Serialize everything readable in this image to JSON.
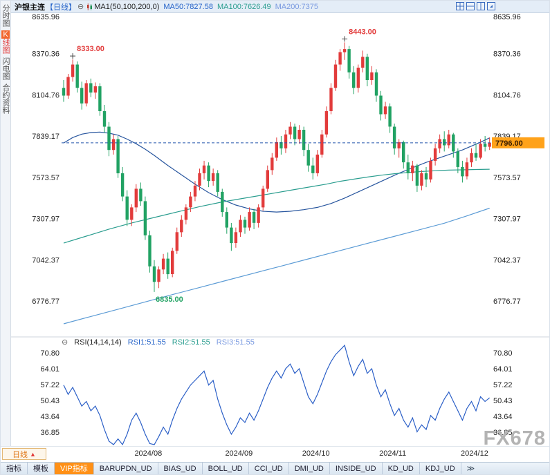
{
  "header": {
    "title": "沪银主连",
    "period_tag": "【日线】",
    "collapse_icon": "⊖",
    "ma_label": "MA1(50,100,200,0)",
    "ma50": "MA50:7827.58",
    "ma100": "MA100:7626.49",
    "ma200": "MA200:7375"
  },
  "sidebar": {
    "items": [
      {
        "label": "分时图",
        "selected": false
      },
      {
        "label": "K线图",
        "selected": true
      },
      {
        "label": "闪电图",
        "selected": false
      },
      {
        "label": "合约资料",
        "selected": false
      }
    ]
  },
  "rsi_header": {
    "collapse_icon": "⊖",
    "name": "RSI(14,14,14)",
    "rsi1": "RSI1:51.55",
    "rsi2": "RSI2:51.55",
    "rsi3": "RSI3:51.55"
  },
  "xaxis": {
    "period_button": "日线",
    "period_arrow": "▲",
    "watermark": "FX678"
  },
  "toolbar": {
    "items": [
      {
        "label": "指标",
        "highlight": false
      },
      {
        "label": "模板",
        "highlight": false
      },
      {
        "label": "VIP指标",
        "highlight": true
      },
      {
        "label": "BARUPDN_UD",
        "highlight": false
      },
      {
        "label": "BIAS_UD",
        "highlight": false
      },
      {
        "label": "BOLL_UD",
        "highlight": false
      },
      {
        "label": "CCI_UD",
        "highlight": false
      },
      {
        "label": "DMI_UD",
        "highlight": false
      },
      {
        "label": "INSIDE_UD",
        "highlight": false
      },
      {
        "label": "KD_UD",
        "highlight": false
      },
      {
        "label": "KDJ_UD",
        "highlight": false
      }
    ],
    "more": "≫"
  },
  "colors": {
    "up": "#e23b3b",
    "down": "#21a263",
    "ma50": "#27559e",
    "ma100": "#2a9d8f",
    "ma200": "#5b9bd5",
    "rsi": "#2b5fc7",
    "dashed_line": "#2255aa",
    "last_price_bg": "#ffa21a",
    "last_price_text": "#3a1d00",
    "axis_text": "#222"
  },
  "chart_data": {
    "type": "candlestick",
    "symbol": "沪银主连",
    "period": "日线",
    "price_axis": {
      "max": 8635.96,
      "min": 6776.77,
      "ticks": [
        "8635.96",
        "8370.36",
        "8104.76",
        "7839.17",
        "7573.57",
        "7307.97",
        "7042.37",
        "6776.77"
      ]
    },
    "x_ticks": [
      {
        "label": "2024/08",
        "index": 19
      },
      {
        "label": "2024/09",
        "index": 39
      },
      {
        "label": "2024/10",
        "index": 56
      },
      {
        "label": "2024/11",
        "index": 73
      },
      {
        "label": "2024/12",
        "index": 91
      }
    ],
    "candles": [
      [
        8150,
        8200,
        8060,
        8100
      ],
      [
        8100,
        8240,
        8080,
        8220
      ],
      [
        8220,
        8333,
        8190,
        8300
      ],
      [
        8300,
        8320,
        8120,
        8150
      ],
      [
        8150,
        8190,
        8010,
        8050
      ],
      [
        8050,
        8200,
        8030,
        8180
      ],
      [
        8180,
        8210,
        8090,
        8120
      ],
      [
        8120,
        8185,
        8080,
        8160
      ],
      [
        8160,
        8180,
        7970,
        8000
      ],
      [
        8000,
        8040,
        7860,
        7900
      ],
      [
        7900,
        7930,
        7710,
        7750
      ],
      [
        7750,
        7850,
        7720,
        7820
      ],
      [
        7820,
        7840,
        7570,
        7600
      ],
      [
        7600,
        7640,
        7420,
        7450
      ],
      [
        7450,
        7490,
        7260,
        7300
      ],
      [
        7300,
        7400,
        7260,
        7380
      ],
      [
        7380,
        7530,
        7350,
        7500
      ],
      [
        7500,
        7540,
        7390,
        7420
      ],
      [
        7420,
        7450,
        7170,
        7200
      ],
      [
        7200,
        7230,
        6960,
        7000
      ],
      [
        7000,
        7040,
        6835,
        6900
      ],
      [
        6900,
        7000,
        6860,
        6980
      ],
      [
        6980,
        7080,
        6950,
        7050
      ],
      [
        7050,
        7090,
        6920,
        6950
      ],
      [
        6950,
        7120,
        6930,
        7100
      ],
      [
        7100,
        7250,
        7080,
        7220
      ],
      [
        7220,
        7330,
        7190,
        7300
      ],
      [
        7300,
        7400,
        7270,
        7380
      ],
      [
        7380,
        7480,
        7350,
        7450
      ],
      [
        7450,
        7550,
        7420,
        7520
      ],
      [
        7520,
        7630,
        7490,
        7600
      ],
      [
        7600,
        7680,
        7560,
        7650
      ],
      [
        7650,
        7670,
        7510,
        7550
      ],
      [
        7550,
        7630,
        7520,
        7600
      ],
      [
        7600,
        7620,
        7450,
        7480
      ],
      [
        7480,
        7500,
        7320,
        7350
      ],
      [
        7350,
        7380,
        7210,
        7250
      ],
      [
        7250,
        7280,
        7100,
        7150
      ],
      [
        7150,
        7250,
        7120,
        7220
      ],
      [
        7220,
        7330,
        7190,
        7300
      ],
      [
        7300,
        7320,
        7210,
        7250
      ],
      [
        7250,
        7380,
        7230,
        7350
      ],
      [
        7350,
        7370,
        7240,
        7280
      ],
      [
        7280,
        7400,
        7250,
        7380
      ],
      [
        7380,
        7520,
        7360,
        7500
      ],
      [
        7500,
        7650,
        7480,
        7620
      ],
      [
        7620,
        7730,
        7590,
        7700
      ],
      [
        7700,
        7830,
        7680,
        7800
      ],
      [
        7800,
        7840,
        7720,
        7760
      ],
      [
        7760,
        7880,
        7730,
        7850
      ],
      [
        7850,
        7930,
        7820,
        7900
      ],
      [
        7900,
        7920,
        7780,
        7820
      ],
      [
        7820,
        7910,
        7790,
        7880
      ],
      [
        7880,
        7900,
        7710,
        7750
      ],
      [
        7750,
        7790,
        7610,
        7650
      ],
      [
        7650,
        7700,
        7560,
        7600
      ],
      [
        7600,
        7750,
        7580,
        7720
      ],
      [
        7720,
        7880,
        7700,
        7850
      ],
      [
        7850,
        8030,
        7830,
        8000
      ],
      [
        8000,
        8180,
        7980,
        8150
      ],
      [
        8150,
        8330,
        8130,
        8300
      ],
      [
        8300,
        8400,
        8260,
        8380
      ],
      [
        8380,
        8443,
        8330,
        8400
      ],
      [
        8400,
        8420,
        8210,
        8250
      ],
      [
        8250,
        8290,
        8110,
        8150
      ],
      [
        8150,
        8300,
        8120,
        8280
      ],
      [
        8280,
        8390,
        8250,
        8350
      ],
      [
        8350,
        8370,
        8160,
        8200
      ],
      [
        8200,
        8290,
        8170,
        8250
      ],
      [
        8250,
        8270,
        8060,
        8100
      ],
      [
        8100,
        8130,
        7940,
        7980
      ],
      [
        7980,
        8060,
        7950,
        8030
      ],
      [
        8030,
        8050,
        7860,
        7900
      ],
      [
        7900,
        7920,
        7720,
        7760
      ],
      [
        7760,
        7820,
        7700,
        7800
      ],
      [
        7800,
        7810,
        7630,
        7670
      ],
      [
        7670,
        7720,
        7560,
        7600
      ],
      [
        7600,
        7680,
        7550,
        7650
      ],
      [
        7650,
        7660,
        7480,
        7520
      ],
      [
        7520,
        7620,
        7490,
        7600
      ],
      [
        7600,
        7640,
        7510,
        7560
      ],
      [
        7560,
        7700,
        7540,
        7680
      ],
      [
        7680,
        7790,
        7650,
        7760
      ],
      [
        7760,
        7850,
        7730,
        7820
      ],
      [
        7820,
        7870,
        7740,
        7780
      ],
      [
        7780,
        7880,
        7760,
        7850
      ],
      [
        7850,
        7860,
        7700,
        7740
      ],
      [
        7740,
        7760,
        7600,
        7640
      ],
      [
        7640,
        7680,
        7540,
        7580
      ],
      [
        7580,
        7700,
        7560,
        7670
      ],
      [
        7670,
        7760,
        7640,
        7730
      ],
      [
        7730,
        7790,
        7680,
        7700
      ],
      [
        7700,
        7820,
        7690,
        7790
      ],
      [
        7790,
        7840,
        7740,
        7770
      ],
      [
        7770,
        7830,
        7750,
        7796
      ]
    ],
    "ma_lines": [
      {
        "name": "MA50",
        "value": 7827.58,
        "color": "#27559e",
        "points": [
          [
            0,
            7795
          ],
          [
            2,
            7830
          ],
          [
            4,
            7852
          ],
          [
            6,
            7862
          ],
          [
            8,
            7865
          ],
          [
            10,
            7858
          ],
          [
            12,
            7845
          ],
          [
            14,
            7820
          ],
          [
            16,
            7790
          ],
          [
            18,
            7755
          ],
          [
            20,
            7715
          ],
          [
            23,
            7650
          ],
          [
            26,
            7590
          ],
          [
            29,
            7530
          ],
          [
            32,
            7475
          ],
          [
            35,
            7430
          ],
          [
            38,
            7395
          ],
          [
            41,
            7370
          ],
          [
            44,
            7355
          ],
          [
            47,
            7350
          ],
          [
            50,
            7355
          ],
          [
            53,
            7365
          ],
          [
            56,
            7380
          ],
          [
            59,
            7405
          ],
          [
            62,
            7440
          ],
          [
            65,
            7480
          ],
          [
            68,
            7520
          ],
          [
            71,
            7560
          ],
          [
            74,
            7600
          ],
          [
            77,
            7635
          ],
          [
            80,
            7670
          ],
          [
            83,
            7700
          ],
          [
            86,
            7730
          ],
          [
            88,
            7750
          ],
          [
            90,
            7775
          ],
          [
            92,
            7800
          ],
          [
            94,
            7828
          ]
        ]
      },
      {
        "name": "MA100",
        "value": 7626.49,
        "color": "#2a9d8f",
        "points": [
          [
            0,
            7150
          ],
          [
            5,
            7195
          ],
          [
            10,
            7240
          ],
          [
            15,
            7280
          ],
          [
            20,
            7315
          ],
          [
            25,
            7350
          ],
          [
            30,
            7385
          ],
          [
            35,
            7415
          ],
          [
            40,
            7440
          ],
          [
            45,
            7465
          ],
          [
            50,
            7490
          ],
          [
            55,
            7515
          ],
          [
            58,
            7530
          ],
          [
            61,
            7548
          ],
          [
            64,
            7562
          ],
          [
            67,
            7575
          ],
          [
            70,
            7587
          ],
          [
            73,
            7597
          ],
          [
            76,
            7605
          ],
          [
            79,
            7611
          ],
          [
            82,
            7616
          ],
          [
            85,
            7620
          ],
          [
            88,
            7622
          ],
          [
            91,
            7624
          ],
          [
            94,
            7626
          ]
        ]
      },
      {
        "name": "MA200",
        "value": 7375,
        "color": "#5b9bd5",
        "points": [
          [
            0,
            6630
          ],
          [
            6,
            6677
          ],
          [
            12,
            6724
          ],
          [
            18,
            6771
          ],
          [
            24,
            6818
          ],
          [
            30,
            6864
          ],
          [
            36,
            6910
          ],
          [
            42,
            6956
          ],
          [
            48,
            7002
          ],
          [
            54,
            7048
          ],
          [
            60,
            7094
          ],
          [
            66,
            7140
          ],
          [
            72,
            7186
          ],
          [
            78,
            7232
          ],
          [
            84,
            7278
          ],
          [
            89,
            7325
          ],
          [
            94,
            7375
          ]
        ]
      }
    ],
    "last_price": {
      "label": "7796.00",
      "value": 7796
    },
    "annotations": [
      {
        "label": "8333.00",
        "index": 2,
        "price": 8333,
        "color": "#e23b3b",
        "position": "above"
      },
      {
        "label": "8443.00",
        "index": 62,
        "price": 8443,
        "color": "#e23b3b",
        "position": "above"
      },
      {
        "label": "6835.00",
        "index": 20,
        "price": 6835,
        "color": "#21a263",
        "position": "below"
      }
    ],
    "rsi": {
      "name": "RSI(14,14,14)",
      "last": 51.55,
      "axis_ticks": [
        "70.80",
        "64.01",
        "57.22",
        "50.43",
        "43.64",
        "36.85"
      ],
      "values": [
        57,
        53,
        56,
        52,
        48,
        50,
        46,
        48,
        44,
        38,
        33,
        31,
        34,
        30,
        36,
        42,
        45,
        41,
        36,
        32,
        30,
        35,
        39,
        36,
        42,
        47,
        51,
        54,
        57,
        59,
        61,
        63,
        57,
        59,
        51,
        45,
        40,
        36,
        39,
        43,
        41,
        45,
        42,
        46,
        51,
        56,
        60,
        63,
        60,
        64,
        66,
        62,
        64,
        58,
        52,
        49,
        53,
        58,
        63,
        67,
        70,
        72,
        74,
        67,
        61,
        65,
        68,
        62,
        64,
        57,
        52,
        55,
        49,
        44,
        47,
        42,
        39,
        43,
        37,
        40,
        38,
        44,
        42,
        47,
        51,
        54,
        50,
        46,
        42,
        47,
        50,
        46,
        52,
        50,
        51.55
      ]
    }
  }
}
